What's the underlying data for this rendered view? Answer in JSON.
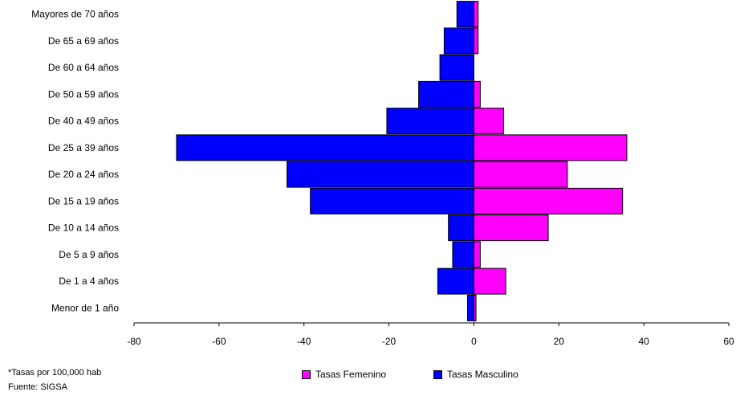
{
  "notes": {
    "rate_note": "*Tasas por 100,000 hab",
    "source": "Fuente: SIGSA"
  },
  "chart_data": {
    "type": "bar",
    "orientation": "horizontal",
    "layout": "population-pyramid",
    "categories": [
      "Mayores de 70 años",
      "De 65 a 69 años",
      "De 60 a 64 años",
      "De 50 a 59 años",
      "De 40 a 49 años",
      "De 25 a 39 años",
      "De 20 a 24 años",
      "De 15 a 19 años",
      "De 10 a 14 años",
      "De 5 a 9 años",
      "De 1 a 4 años",
      "Menor de 1 año"
    ],
    "series": [
      {
        "name": "Tasas Masculino",
        "color": "#0000FF",
        "values": [
          -4,
          -7,
          -8,
          -13,
          -20.5,
          -70,
          -44,
          -38.5,
          -6,
          -5,
          -8.5,
          -1.5
        ]
      },
      {
        "name": "Tasas Femenino",
        "color": "#FF00FF",
        "values": [
          1,
          1,
          0,
          1.5,
          7,
          36,
          22,
          35,
          17.5,
          1.5,
          7.5,
          0.5
        ]
      }
    ],
    "xlim": [
      -80,
      60
    ],
    "xticks": [
      -80,
      -60,
      -40,
      -20,
      0,
      20,
      40,
      60
    ],
    "legend": {
      "position": "bottom",
      "items": [
        {
          "label": "Tasas Femenino",
          "color": "#FF00FF"
        },
        {
          "label": "Tasas Masculino",
          "color": "#0000FF"
        }
      ]
    },
    "grid": false
  }
}
